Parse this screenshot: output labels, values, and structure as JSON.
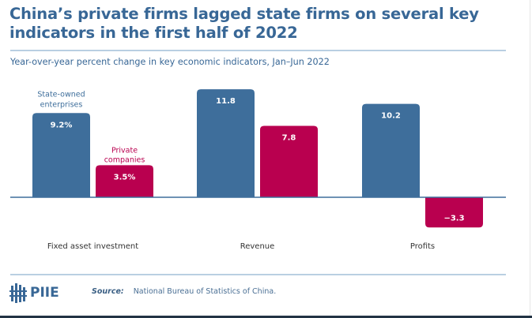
{
  "title": "China’s private firms lagged state firms on several key indicators in the first half of 2022",
  "subtitle": "Year-over-year percent change in key economic indicators, Jan–Jun 2022",
  "source_label": "Source:",
  "source_text": "National Bureau of Statistics of China.",
  "logo_text": "PIIE",
  "colors": {
    "state": "#3e6e9b",
    "private": "#b9004f",
    "title": "#386796"
  },
  "chart_data": {
    "type": "bar",
    "categories": [
      "Fixed asset investment",
      "Revenue",
      "Profits"
    ],
    "series": [
      {
        "name": "State-owned enterprises",
        "values": [
          9.2,
          11.8,
          10.2
        ],
        "labels": [
          "9.2%",
          "11.8",
          "10.2"
        ]
      },
      {
        "name": "Private companies",
        "values": [
          3.5,
          7.8,
          -3.3
        ],
        "labels": [
          "3.5%",
          "7.8",
          "−3.3"
        ]
      }
    ],
    "title": "China’s private firms lagged state firms on several key indicators in the first half of 2022",
    "subtitle": "Year-over-year percent change in key economic indicators, Jan–Jun 2022",
    "legend": "inline labels above first category bars",
    "grid": false
  }
}
